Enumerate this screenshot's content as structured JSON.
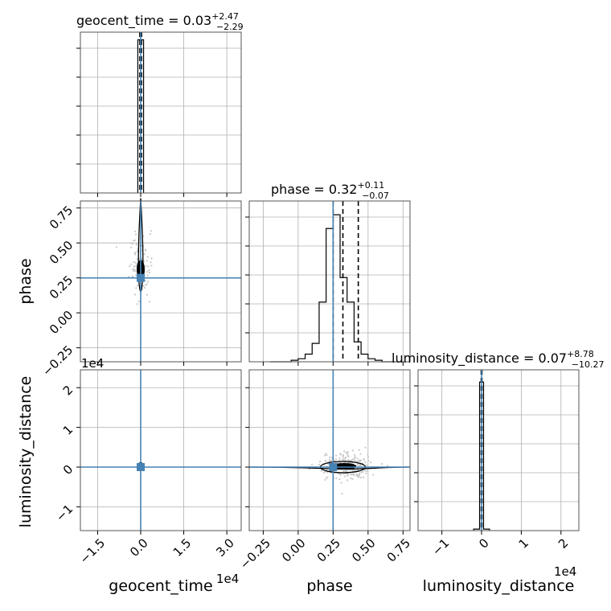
{
  "chart_data": {
    "type": "scatter",
    "parameters": [
      "geocent_time",
      "phase",
      "luminosity_distance"
    ],
    "axis_labels": {
      "geocent_time": "geocent_time",
      "phase": "phase",
      "luminosity_distance": "luminosity_distance"
    },
    "offset_labels": {
      "geocent_time_x": "1e4",
      "luminosity_distance_y": "1e4",
      "luminosity_distance_x": "1e4"
    },
    "titles": [
      {
        "param": "geocent_time",
        "name": "geocent_time",
        "median": "0.03",
        "plus": "+2.47",
        "minus": "−2.29"
      },
      {
        "param": "phase",
        "name": "phase",
        "median": "0.32",
        "plus": "+0.11",
        "minus": "−0.07"
      },
      {
        "param": "luminosity_distance",
        "name": "luminosity_distance",
        "median": "0.07",
        "plus": "+8.78",
        "minus": "−10.27"
      }
    ],
    "ranges": {
      "geocent_time": [
        -2.1,
        3.5
      ],
      "phase": [
        -0.35,
        0.8
      ],
      "luminosity_distance": [
        -1.6,
        2.45
      ]
    },
    "ticks": {
      "geocent_time": {
        "values": [
          -1.5,
          0.0,
          1.5,
          3.0
        ],
        "labels": [
          "−1.5",
          "0.0",
          "1.5",
          "3.0"
        ]
      },
      "phase": {
        "values": [
          -0.25,
          0.0,
          0.25,
          0.5,
          0.75
        ],
        "labels": [
          "−0.25",
          "0.00",
          "0.25",
          "0.50",
          "0.75"
        ]
      },
      "phase_y": {
        "values": [
          -0.25,
          0.0,
          0.25,
          0.5,
          0.75
        ],
        "labels": [
          "−0.25",
          "0.00",
          "0.25",
          "0.50",
          "0.75"
        ]
      },
      "luminosity_distance": {
        "values": [
          -1,
          0,
          1,
          2
        ],
        "labels": [
          "−1",
          "0",
          "1",
          "2"
        ]
      }
    },
    "truths": {
      "geocent_time": 0.0,
      "phase": 0.25,
      "luminosity_distance": 0.0
    },
    "quantiles": {
      "geocent_time": [
        -0.03,
        0.0,
        0.03
      ],
      "phase": [
        0.25,
        0.32,
        0.43
      ],
      "luminosity_distance": [
        -0.01,
        0.0,
        0.01
      ]
    },
    "hist_geocent_time": {
      "edges": [
        -0.1,
        0.1
      ],
      "heights": [
        1.0
      ]
    },
    "hist_phase": {
      "edges": [
        -0.2,
        -0.15,
        -0.1,
        -0.05,
        0.0,
        0.05,
        0.1,
        0.15,
        0.2,
        0.25,
        0.3,
        0.35,
        0.4,
        0.45,
        0.5,
        0.55,
        0.6,
        0.65,
        0.7
      ],
      "heights": [
        0.0,
        0.0,
        0.0,
        0.01,
        0.02,
        0.05,
        0.12,
        0.39,
        0.87,
        0.96,
        0.55,
        0.39,
        0.13,
        0.05,
        0.02,
        0.01,
        0.0,
        0.0
      ]
    },
    "hist_luminosity_distance": {
      "edges": [
        -0.2,
        -0.05,
        0.05,
        0.2
      ],
      "heights": [
        0.01,
        0.97,
        0.01
      ]
    },
    "grid": true,
    "legend": "none"
  }
}
